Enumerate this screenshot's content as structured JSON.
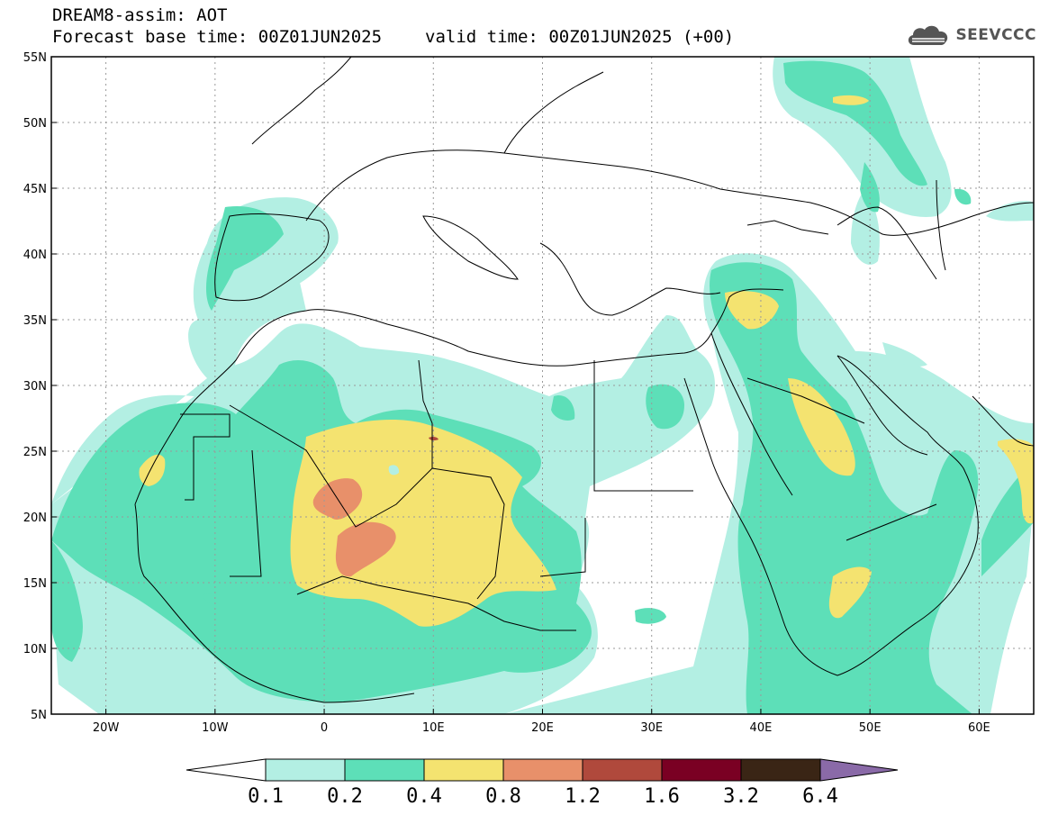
{
  "header": {
    "model_line": "DREAM8-assim: AOT",
    "base_time_line": "Forecast base time: 00Z01JUN2025",
    "valid_time_line": "valid time: 00Z01JUN2025 (+00)"
  },
  "logo": {
    "text": "SEEVCCC"
  },
  "map": {
    "lon_range": [
      -25,
      65
    ],
    "lat_range": [
      5,
      55
    ],
    "lon_ticks": [
      {
        "value": -20,
        "label": "20W"
      },
      {
        "value": -10,
        "label": "10W"
      },
      {
        "value": 0,
        "label": "0"
      },
      {
        "value": 10,
        "label": "10E"
      },
      {
        "value": 20,
        "label": "20E"
      },
      {
        "value": 30,
        "label": "30E"
      },
      {
        "value": 40,
        "label": "40E"
      },
      {
        "value": 50,
        "label": "50E"
      },
      {
        "value": 60,
        "label": "60E"
      }
    ],
    "lat_ticks": [
      {
        "value": 55,
        "label": "55N"
      },
      {
        "value": 50,
        "label": "50N"
      },
      {
        "value": 45,
        "label": "45N"
      },
      {
        "value": 40,
        "label": "40N"
      },
      {
        "value": 35,
        "label": "35N"
      },
      {
        "value": 30,
        "label": "30N"
      },
      {
        "value": 25,
        "label": "25N"
      },
      {
        "value": 20,
        "label": "20N"
      },
      {
        "value": 15,
        "label": "15N"
      },
      {
        "value": 10,
        "label": "10N"
      },
      {
        "value": 5,
        "label": "5N"
      }
    ]
  },
  "colorbar": {
    "levels": [
      "0.1",
      "0.2",
      "0.4",
      "0.8",
      "1.2",
      "1.6",
      "3.2",
      "6.4"
    ],
    "colors": [
      "#ffffff",
      "#b3efe3",
      "#5ddfb8",
      "#f4e370",
      "#e8906a",
      "#b0493c",
      "#7a0023",
      "#3a2515",
      "#8a6aa8"
    ]
  },
  "aot_colors": {
    "c1": "#b3efe3",
    "c2": "#5ddfb8",
    "c3": "#f4e370",
    "c4": "#e8906a",
    "c5": "#b0493c",
    "c6": "#7a0023",
    "c7": "#3a2515",
    "c8": "#8a6aa8"
  }
}
